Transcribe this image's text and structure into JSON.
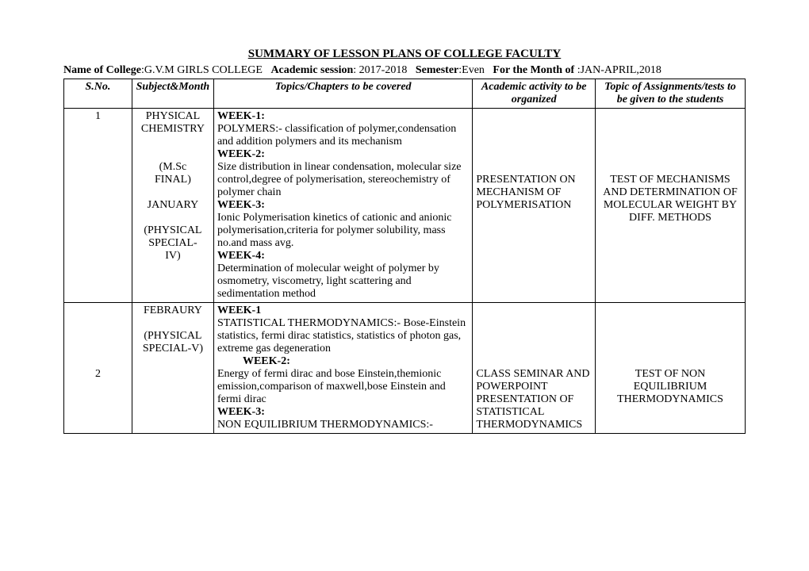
{
  "header": {
    "title": "SUMMARY OF LESSON PLANS OF COLLEGE FACULTY",
    "college_label": "Name of College",
    "college": ":G.V.M GIRLS COLLEGE",
    "session_label": "Academic session",
    "session": ": 2017-2018",
    "semester_label": "Semester",
    "semester": ":Even",
    "month_label": "For the Month of ",
    "month": ":JAN-APRIL,2018"
  },
  "columns": {
    "sno": "S.No.",
    "subject": "Subject&Month",
    "topics": "Topics/Chapters to be covered",
    "activity": "Academic activity to be organized",
    "assignments": "Topic of Assignments/tests to be given to the students"
  },
  "rows": [
    {
      "sno": "1",
      "subject_lines": [
        "PHYSICAL",
        "CHEMISTRY",
        "",
        "",
        "(M.Sc",
        "FINAL)",
        "",
        "JANUARY",
        "",
        "(PHYSICAL",
        "SPECIAL-",
        "IV)"
      ],
      "topics": [
        {
          "week": "WEEK-1:",
          "text": "POLYMERS:- classification of polymer,condensation and addition polymers and its mechanism"
        },
        {
          "week": "WEEK-2:",
          "text": "Size distribution in linear condensation, molecular size control,degree of polymerisation, stereochemistry of polymer chain"
        },
        {
          "week": "WEEK-3:",
          "text": "Ionic Polymerisation kinetics of cationic and anionic polymerisation,criteria for polymer solubility, mass no.and mass avg."
        },
        {
          "week": "WEEK-4:",
          "text": "Determination of molecular weight of polymer by osmometry, viscometry, light scattering and sedimentation method"
        }
      ],
      "activity_pad_lines": 5,
      "activity": "PRESENTATION ON MECHANISM OF POLYMERISATION",
      "assignment_pad_lines": 5,
      "assignment": "TEST OF MECHANISMS AND DETERMINATION OF MOLECULAR WEIGHT BY DIFF. METHODS"
    },
    {
      "sno": "2",
      "sno_pad_lines": 5,
      "subject_lines": [
        "FEBRAURY",
        "",
        "(PHYSICAL",
        "SPECIAL-V)"
      ],
      "topics": [
        {
          "week": "WEEK-1",
          "text": "STATISTICAL THERMODYNAMICS:- Bose-Einstein statistics, fermi dirac statistics, statistics of photon gas, extreme gas degeneration"
        },
        {
          "week_indent": true,
          "week": "WEEK-2:",
          "text": "Energy of fermi dirac and bose Einstein,themionic emission,comparison of maxwell,bose Einstein and fermi dirac"
        },
        {
          "week": "WEEK-3:",
          "text": "NON EQUILIBRIUM THERMODYNAMICS:-"
        }
      ],
      "activity_pad_lines": 5,
      "activity": "CLASS SEMINAR AND POWERPOINT PRESENTATION OF STATISTICAL THERMODYNAMICS",
      "assignment_pad_lines": 5,
      "assignment": "TEST OF NON EQUILIBRIUM THERMODYNAMICS"
    }
  ]
}
